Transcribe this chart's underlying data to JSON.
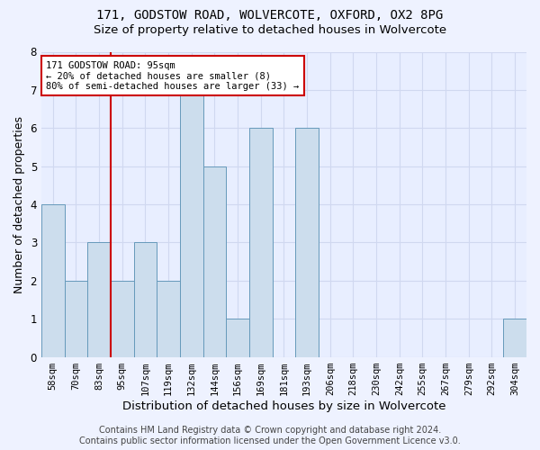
{
  "title_line1": "171, GODSTOW ROAD, WOLVERCOTE, OXFORD, OX2 8PG",
  "title_line2": "Size of property relative to detached houses in Wolvercote",
  "xlabel": "Distribution of detached houses by size in Wolvercote",
  "ylabel": "Number of detached properties",
  "categories": [
    "58sqm",
    "70sqm",
    "83sqm",
    "95sqm",
    "107sqm",
    "119sqm",
    "132sqm",
    "144sqm",
    "156sqm",
    "169sqm",
    "181sqm",
    "193sqm",
    "206sqm",
    "218sqm",
    "230sqm",
    "242sqm",
    "255sqm",
    "267sqm",
    "279sqm",
    "292sqm",
    "304sqm"
  ],
  "values": [
    4,
    2,
    3,
    2,
    3,
    2,
    7,
    5,
    1,
    6,
    0,
    6,
    0,
    0,
    0,
    0,
    0,
    0,
    0,
    0,
    1
  ],
  "bar_color": "#ccdded",
  "bar_edge_color": "#6699bb",
  "highlight_index": 3,
  "highlight_line_color": "#cc0000",
  "annotation_text": "171 GODSTOW ROAD: 95sqm\n← 20% of detached houses are smaller (8)\n80% of semi-detached houses are larger (33) →",
  "annotation_box_color": "#ffffff",
  "annotation_box_edge": "#cc0000",
  "ylim": [
    0,
    8
  ],
  "yticks": [
    0,
    1,
    2,
    3,
    4,
    5,
    6,
    7,
    8
  ],
  "footer": "Contains HM Land Registry data © Crown copyright and database right 2024.\nContains public sector information licensed under the Open Government Licence v3.0.",
  "bg_color": "#eef2ff",
  "plot_bg_color": "#e8eeff",
  "grid_color": "#d0d8f0",
  "title_fontsize": 10,
  "subtitle_fontsize": 9.5,
  "axis_label_fontsize": 9,
  "tick_fontsize": 7.5,
  "annotation_fontsize": 7.5,
  "footer_fontsize": 7
}
